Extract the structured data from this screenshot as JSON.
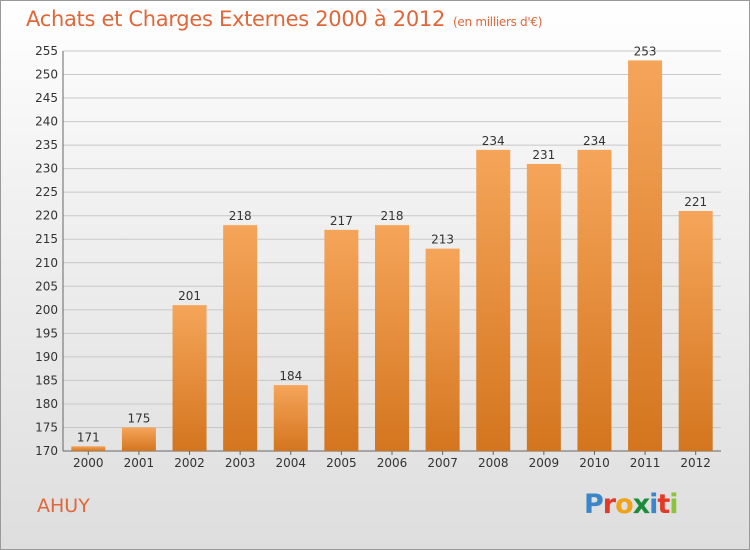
{
  "header": {
    "title": "Achats et Charges Externes 2000 à 2012",
    "unit": "(en milliers d'€)"
  },
  "footer": {
    "commune": "AHUY",
    "brand": "Proxiti"
  },
  "colors": {
    "accent": "#e0673a",
    "bar_top": "#f5a55a",
    "bar_bottom": "#d4751e",
    "grid": "#c8c8c8"
  },
  "chart_data": {
    "type": "bar",
    "title": "Achats et Charges Externes 2000 à 2012",
    "subtitle": "(en milliers d'€)",
    "categories": [
      "2000",
      "2001",
      "2002",
      "2003",
      "2004",
      "2005",
      "2006",
      "2007",
      "2008",
      "2009",
      "2010",
      "2011",
      "2012"
    ],
    "values": [
      171,
      175,
      201,
      218,
      184,
      217,
      218,
      213,
      234,
      231,
      234,
      253,
      221
    ],
    "ylim": [
      170,
      255
    ],
    "yticks": [
      170,
      175,
      180,
      185,
      190,
      195,
      200,
      205,
      210,
      215,
      220,
      225,
      230,
      235,
      240,
      245,
      250,
      255
    ],
    "grid": true,
    "data_labels": true,
    "xlabel": "",
    "ylabel": ""
  }
}
